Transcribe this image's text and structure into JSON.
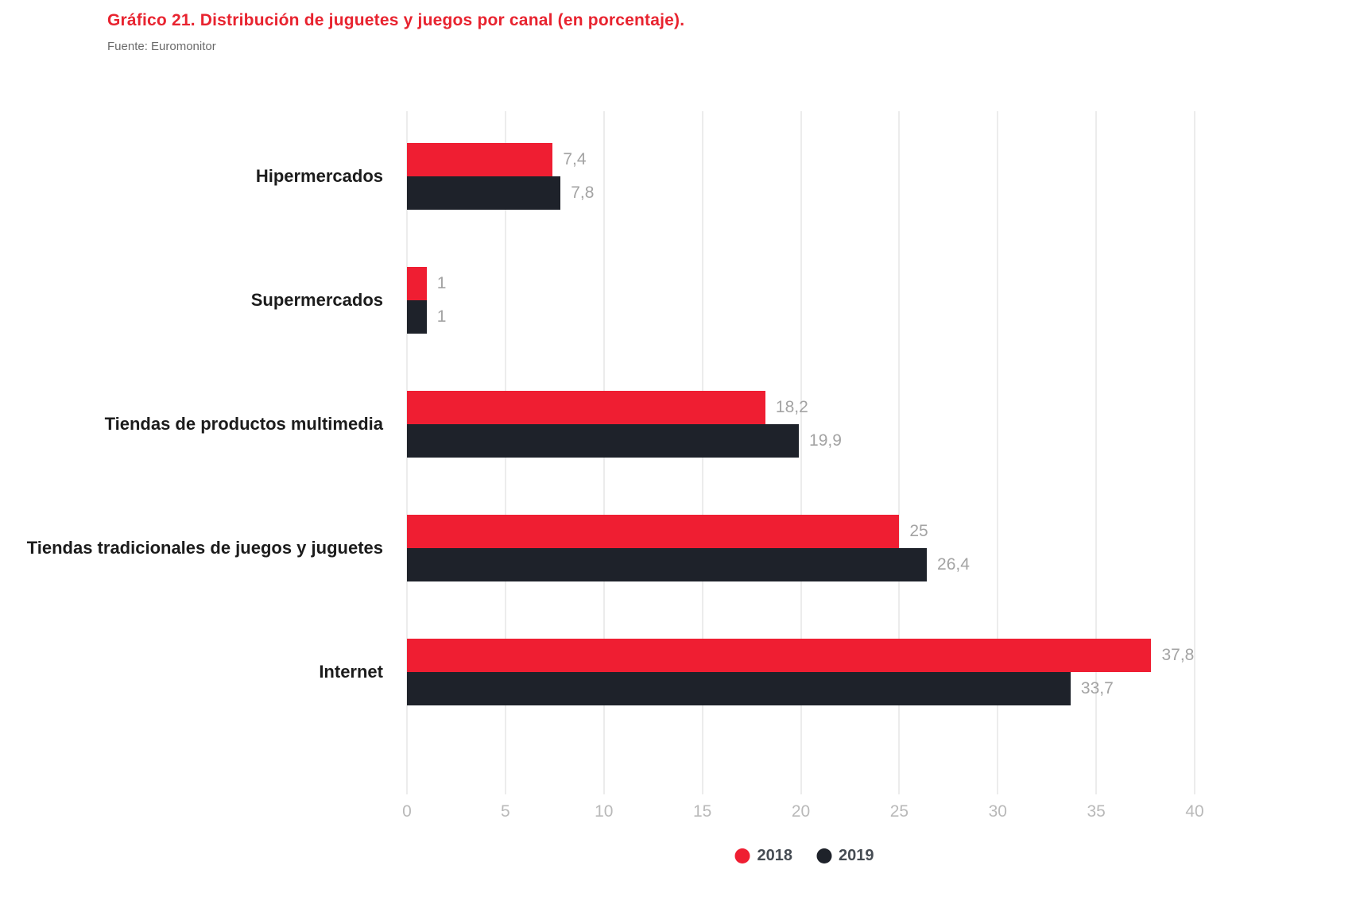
{
  "page": {
    "title": "Gráfico 21. Distribución de juguetes y juegos por canal (en porcentaje).",
    "title_color": "#e8232f",
    "source": "Fuente: Euromonitor"
  },
  "chart_data": {
    "type": "bar",
    "orientation": "horizontal",
    "title": "Gráfico 21. Distribución de juguetes y juegos por canal (en porcentaje).",
    "subtitle": "Fuente: Euromonitor",
    "categories": [
      "Hipermercados",
      "Supermercados",
      "Tiendas de productos multimedia",
      "Tiendas tradicionales de juegos y juguetes",
      "Internet"
    ],
    "series": [
      {
        "name": "2018",
        "color": "#ef1e32",
        "values": [
          7.4,
          1,
          18.2,
          25,
          37.8
        ],
        "value_labels": [
          "7,4",
          "1",
          "18,2",
          "25",
          "37,8"
        ]
      },
      {
        "name": "2019",
        "color": "#1e222a",
        "values": [
          7.8,
          1,
          19.9,
          26.4,
          33.7
        ],
        "value_labels": [
          "7,8",
          "1",
          "19,9",
          "26,4",
          "33,7"
        ]
      }
    ],
    "xlabel": "",
    "ylabel": "",
    "xlim": [
      0,
      40
    ],
    "xticks": [
      "0",
      "5",
      "10",
      "15",
      "20",
      "25",
      "30",
      "35",
      "40"
    ],
    "grid": true,
    "legend_position": "bottom",
    "value_label_color": "#a3a3a3",
    "tick_label_color": "#b9b9b9"
  }
}
